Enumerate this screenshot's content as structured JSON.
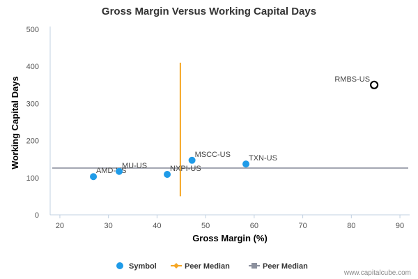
{
  "chart_data": {
    "type": "scatter",
    "title": "Gross Margin Versus Working Capital Days",
    "xlabel": "Gross Margin (%)",
    "ylabel": "Working Capital Days",
    "xlim": [
      18,
      92
    ],
    "ylim": [
      0,
      500
    ],
    "x_ticks": [
      20,
      30,
      40,
      50,
      60,
      70,
      80,
      90
    ],
    "y_ticks": [
      0,
      100,
      200,
      300,
      400,
      500
    ],
    "grid": false,
    "points": [
      {
        "label": "AMD-US",
        "x": 26.9,
        "y": 103,
        "highlight": false
      },
      {
        "label": "MU-US",
        "x": 32.2,
        "y": 117,
        "highlight": false
      },
      {
        "label": "NXPI-US",
        "x": 42.1,
        "y": 109,
        "highlight": false
      },
      {
        "label": "MSCC-US",
        "x": 47.2,
        "y": 147,
        "highlight": false
      },
      {
        "label": "TXN-US",
        "x": 58.3,
        "y": 137,
        "highlight": false
      },
      {
        "label": "RMBS-US",
        "x": 84.7,
        "y": 350,
        "highlight": true
      }
    ],
    "peer_median_x": {
      "value": 44.8,
      "y_range": [
        50,
        410
      ]
    },
    "peer_median_y": {
      "value": 126
    },
    "legend": {
      "placement": "bottom",
      "items": [
        {
          "label": "Symbol",
          "marker": "circle",
          "color": "#1f9be8"
        },
        {
          "label": "Peer Median",
          "marker": "diamond-line",
          "color": "#f5a623"
        },
        {
          "label": "Peer Median",
          "marker": "square-line",
          "color": "#8c919e"
        }
      ]
    },
    "colors": {
      "symbol": "#1f9be8",
      "highlight_stroke": "#000000",
      "median_x": "#f5a623",
      "median_y": "#8c919e",
      "axis": "#c0d0e0"
    },
    "credit": "www.capitalcube.com"
  }
}
